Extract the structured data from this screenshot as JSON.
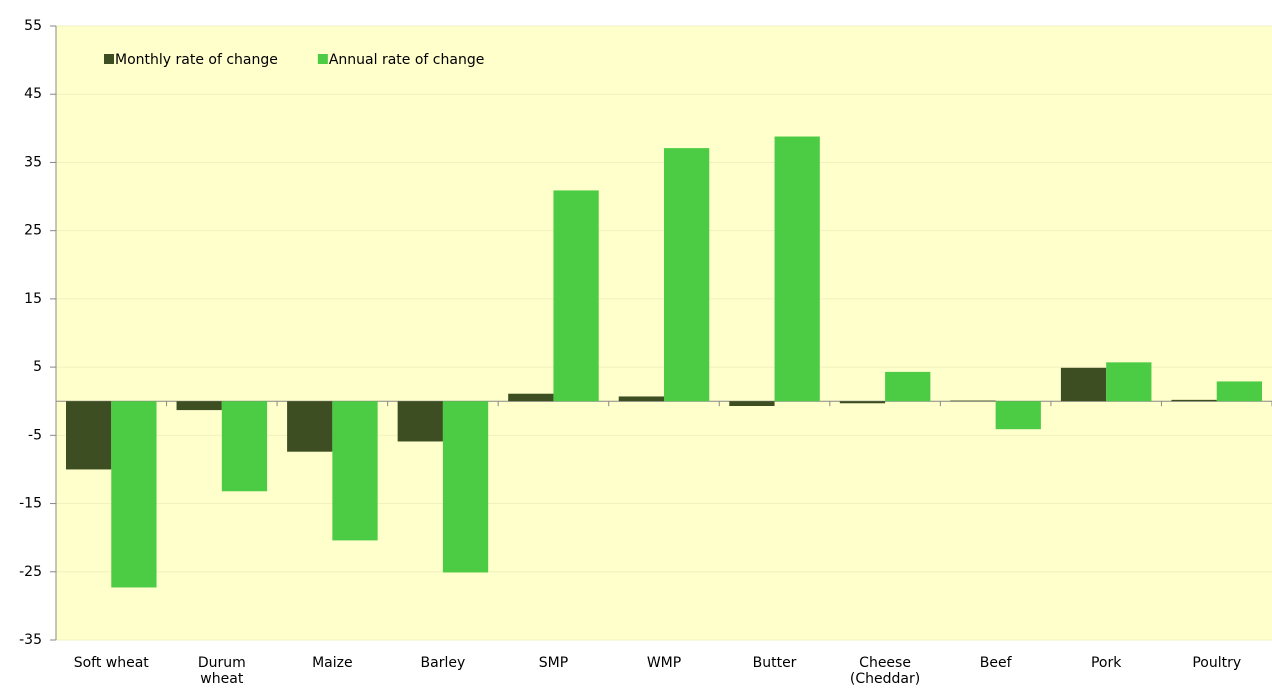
{
  "chart_data": {
    "type": "bar",
    "categories": [
      "Soft wheat",
      "Durum wheat",
      "Maize",
      "Barley",
      "SMP",
      "WMP",
      "Butter",
      "Cheese (Cheddar)",
      "Beef",
      "Pork",
      "Poultry"
    ],
    "series": [
      {
        "name": "Monthly rate of change",
        "color": "#3d4f22",
        "values": [
          -10,
          -1.3,
          -7.4,
          -5.9,
          1.1,
          0.7,
          -0.7,
          -0.3,
          0.1,
          4.9,
          0.2
        ]
      },
      {
        "name": "Annual rate of change",
        "color": "#4ccc44",
        "values": [
          -27.3,
          -13.2,
          -20.4,
          -25.1,
          30.9,
          37.1,
          38.8,
          4.3,
          -4.1,
          5.7,
          2.9
        ]
      }
    ],
    "ylim": [
      -35,
      55
    ],
    "yticks": [
      -35,
      -25,
      -15,
      -5,
      5,
      15,
      25,
      35,
      45,
      55
    ],
    "grid": true,
    "legend": "top-left"
  }
}
